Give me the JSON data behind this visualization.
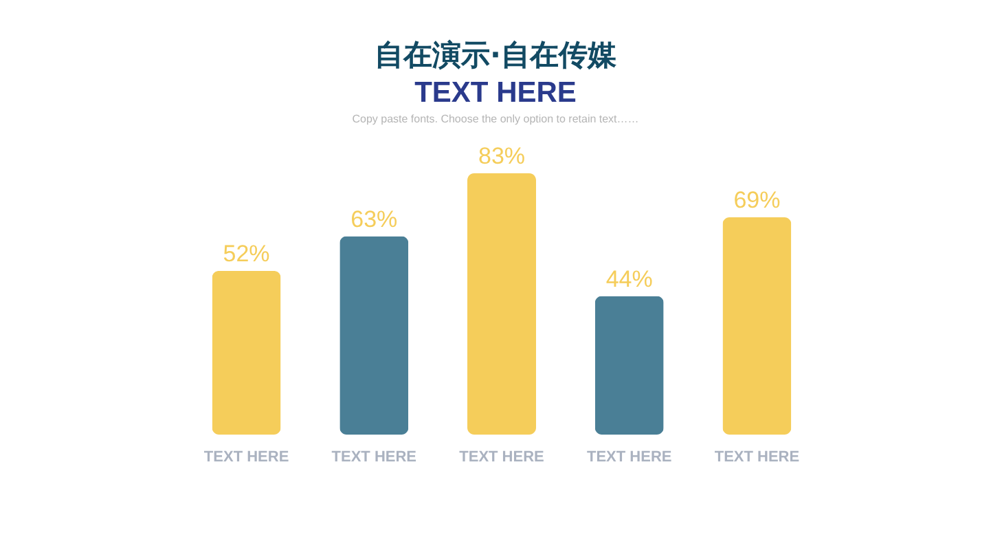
{
  "chart_data": {
    "type": "bar",
    "title": "自在演示·自在传媒",
    "subtitle": "TEXT HERE",
    "annotations": [
      "Copy paste fonts. Choose the only option to retain text……"
    ],
    "categories": [
      "TEXT HERE",
      "TEXT HERE",
      "TEXT HERE",
      "TEXT HERE",
      "TEXT HERE"
    ],
    "values": [
      52,
      63,
      83,
      44,
      69
    ],
    "colors": [
      "#f5cd5a",
      "#4a7f96",
      "#f5cd5a",
      "#4a7f96",
      "#f5cd5a"
    ],
    "value_labels": [
      "52%",
      "63%",
      "83%",
      "44%",
      "69%"
    ],
    "tick_labels": "x"
  }
}
